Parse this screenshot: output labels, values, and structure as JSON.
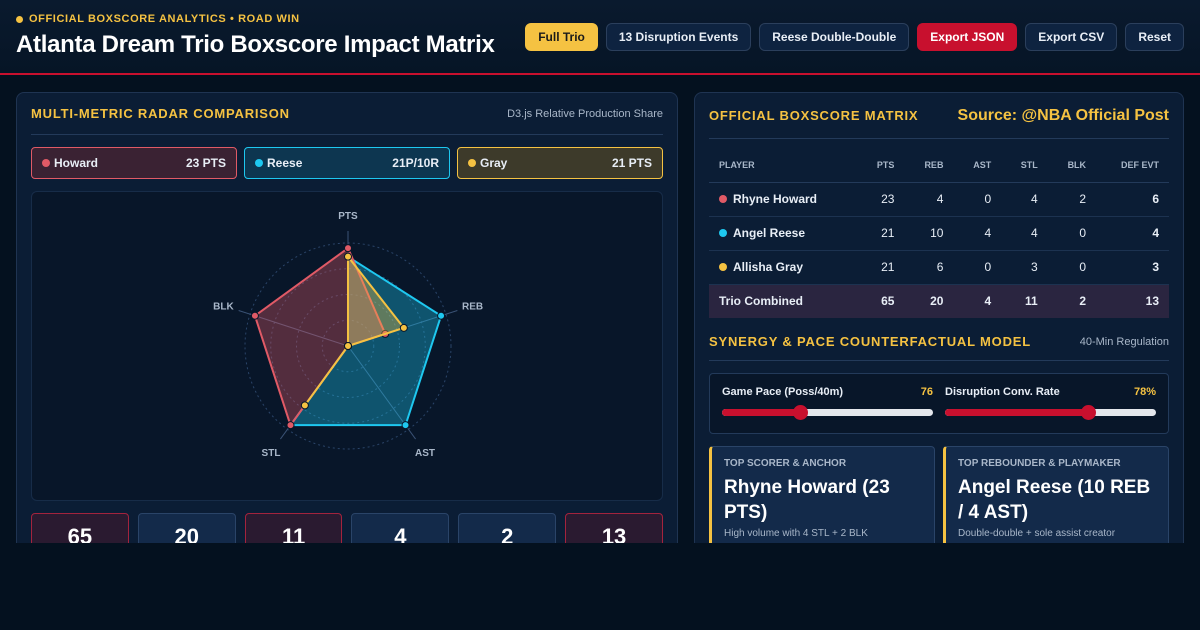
{
  "header": {
    "kicker": "OFFICIAL BOXSCORE ANALYTICS • ROAD WIN",
    "title": "Atlanta Dream Trio Boxscore Impact Matrix"
  },
  "toolbar": {
    "full_trio": "Full Trio",
    "disruption": "13 Disruption Events",
    "reese_dd": "Reese Double-Double",
    "export_json": "Export JSON",
    "export_csv": "Export CSV",
    "reset": "Reset"
  },
  "radar_panel": {
    "title": "MULTI-METRIC RADAR COMPARISON",
    "subtitle": "D3.js Relative Production Share",
    "tabs": [
      {
        "name": "Howard",
        "value": "23 PTS",
        "color": "#e05a66"
      },
      {
        "name": "Reese",
        "value": "21P/10R",
        "color": "#1ec8f0"
      },
      {
        "name": "Gray",
        "value": "21 PTS",
        "color": "#f5c242"
      }
    ],
    "tiles": [
      "65",
      "20",
      "11",
      "4",
      "2",
      "13"
    ]
  },
  "chart_data": {
    "type": "radar",
    "axes": [
      "PTS",
      "REB",
      "AST",
      "STL",
      "BLK"
    ],
    "max": [
      23,
      10,
      4,
      4,
      2
    ],
    "series": [
      {
        "name": "Howard",
        "values": [
          23,
          4,
          0,
          4,
          2
        ],
        "color": "#e05a66"
      },
      {
        "name": "Reese",
        "values": [
          21,
          10,
          4,
          4,
          0
        ],
        "color": "#1ec8f0"
      },
      {
        "name": "Gray",
        "values": [
          21,
          6,
          0,
          3,
          0
        ],
        "color": "#f5c242"
      }
    ]
  },
  "matrix": {
    "title": "OFFICIAL BOXSCORE MATRIX",
    "source": "Source: @NBA Official Post",
    "columns": [
      "PLAYER",
      "PTS",
      "REB",
      "AST",
      "STL",
      "BLK",
      "DEF EVT"
    ],
    "rows": [
      {
        "player": "Rhyne Howard",
        "color": "#e05a66",
        "stats": [
          "23",
          "4",
          "0",
          "4",
          "2",
          "6"
        ]
      },
      {
        "player": "Angel Reese",
        "color": "#1ec8f0",
        "stats": [
          "21",
          "10",
          "4",
          "4",
          "0",
          "4"
        ]
      },
      {
        "player": "Allisha Gray",
        "color": "#f5c242",
        "stats": [
          "21",
          "6",
          "0",
          "3",
          "0",
          "3"
        ]
      }
    ],
    "total": {
      "player": "Trio Combined",
      "stats": [
        "65",
        "20",
        "4",
        "11",
        "2",
        "13"
      ]
    }
  },
  "synergy": {
    "title": "SYNERGY & PACE COUNTERFACTUAL MODEL",
    "subtitle": "40-Min Regulation",
    "sliders": [
      {
        "label": "Game Pace (Poss/40m)",
        "value": "76",
        "fraction": 0.37
      },
      {
        "label": "Disruption Conv. Rate",
        "value": "78%",
        "fraction": 0.68
      }
    ]
  },
  "cards": [
    {
      "kicker": "TOP SCORER & ANCHOR",
      "main": "Rhyne Howard (23 PTS)",
      "note": "High volume with 4 STL + 2 BLK"
    },
    {
      "kicker": "TOP REBOUNDER & PLAYMAKER",
      "main": "Angel Reese (10 REB / 4 AST)",
      "note": "Double-double + sole assist creator"
    }
  ]
}
